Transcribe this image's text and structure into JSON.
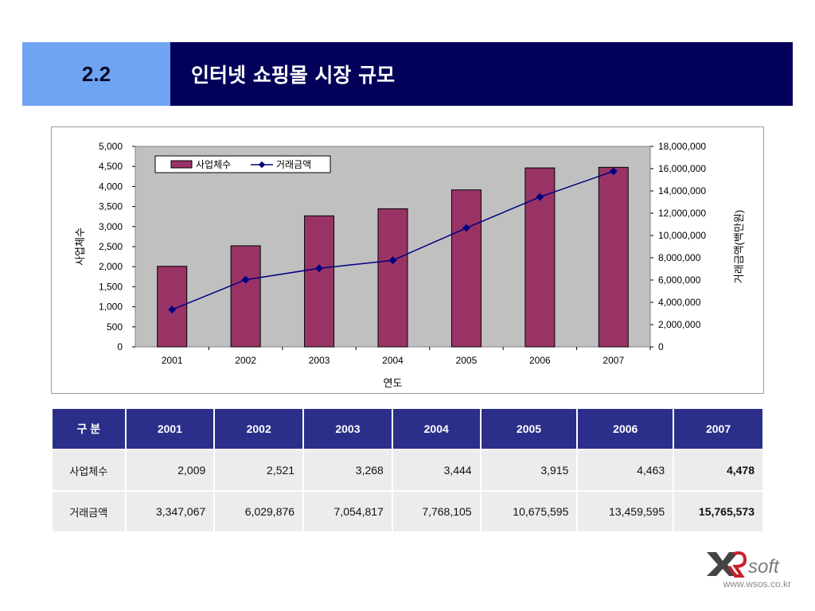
{
  "header": {
    "number": "2.2",
    "title": "인터넷 쇼핑몰 시장 규모"
  },
  "colors": {
    "bar": "#993366",
    "line": "#000080",
    "plot_bg": "#c0c0c0",
    "header_num_bg": "#6fa4f2",
    "header_title_bg": "#03005a",
    "table_header_bg": "#2b2f8a"
  },
  "chart_data": {
    "type": "bar+line",
    "categories": [
      "2001",
      "2002",
      "2003",
      "2004",
      "2005",
      "2006",
      "2007"
    ],
    "series": [
      {
        "name": "사업체수",
        "type": "bar",
        "axis": "left",
        "values": [
          2009,
          2521,
          3268,
          3444,
          3915,
          4463,
          4478
        ]
      },
      {
        "name": "거래금액",
        "type": "line",
        "axis": "right",
        "values": [
          3347067,
          6029876,
          7054817,
          7768105,
          10675595,
          13459595,
          15765573
        ]
      }
    ],
    "xlabel": "연도",
    "ylabel_left": "사업체수",
    "ylabel_right": "거래금액(백만원)",
    "ylim_left": [
      0,
      5000
    ],
    "ylim_right": [
      0,
      18000000
    ],
    "yticks_left": [
      "0",
      "500",
      "1,000",
      "1,500",
      "2,000",
      "2,500",
      "3,000",
      "3,500",
      "4,000",
      "4,500",
      "5,000"
    ],
    "yticks_right": [
      "0",
      "2,000,000",
      "4,000,000",
      "6,000,000",
      "8,000,000",
      "10,000,000",
      "12,000,000",
      "14,000,000",
      "16,000,000",
      "18,000,000"
    ],
    "legend_position": "top-left",
    "grid": false
  },
  "table": {
    "header": [
      "구 분",
      "2001",
      "2002",
      "2003",
      "2004",
      "2005",
      "2006",
      "2007"
    ],
    "rows": [
      {
        "label": "사업체수",
        "values": [
          "2,009",
          "2,521",
          "3,268",
          "3,444",
          "3,915",
          "4,463",
          "4,478"
        ]
      },
      {
        "label": "거래금액",
        "values": [
          "3,347,067",
          "6,029,876",
          "7,054,817",
          "7,768,105",
          "10,675,595",
          "13,459,595",
          "15,765,573"
        ]
      }
    ]
  },
  "footer": {
    "logo_text": "soft",
    "url": "www.wsos.co.kr"
  }
}
